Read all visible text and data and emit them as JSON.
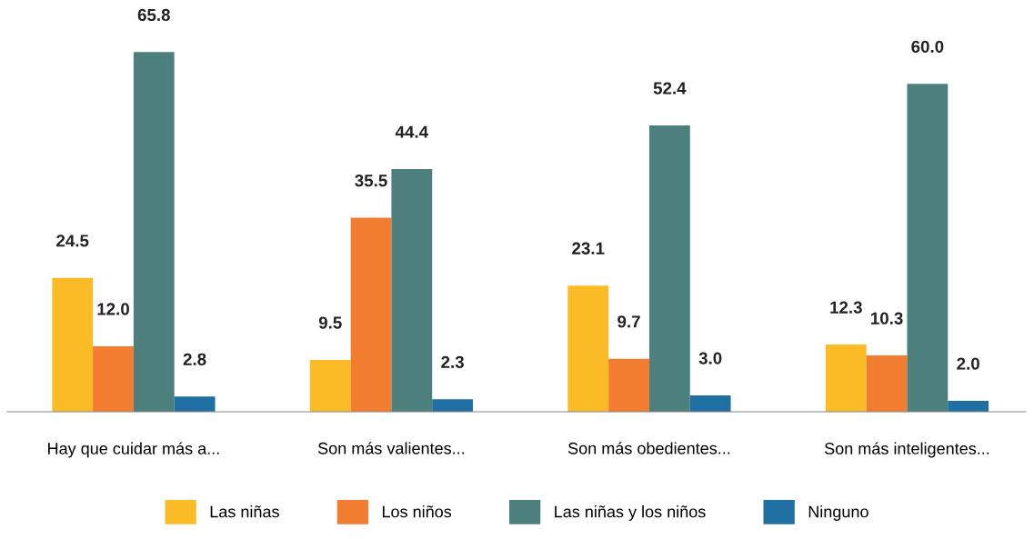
{
  "chart_data": {
    "type": "bar",
    "categories": [
      "Hay que cuidar más a...",
      "Son más valientes...",
      "Son más obedientes...",
      "Son más inteligentes..."
    ],
    "series": [
      {
        "name": "Las niñas",
        "color": "#fbbb27",
        "values": [
          24.5,
          9.5,
          23.1,
          12.3
        ],
        "value_labels": [
          "24.5",
          "9.5",
          "23.1",
          "12.3"
        ]
      },
      {
        "name": "Los niños",
        "color": "#f27d30",
        "values": [
          12.0,
          35.5,
          9.7,
          10.3
        ],
        "value_labels": [
          "12.0",
          "35.5",
          "9.7",
          "10.3"
        ]
      },
      {
        "name": "Las niñas y los niños",
        "color": "#4d7f7d",
        "values": [
          65.8,
          44.4,
          52.4,
          60.0
        ],
        "value_labels": [
          "65.8",
          "44.4",
          "52.4",
          "60.0"
        ]
      },
      {
        "name": "Ninguno",
        "color": "#1f6fa3",
        "values": [
          2.8,
          2.3,
          3.0,
          2.0
        ],
        "value_labels": [
          "2.8",
          "2.3",
          "3.0",
          "2.0"
        ]
      }
    ],
    "legend": "bottom"
  }
}
